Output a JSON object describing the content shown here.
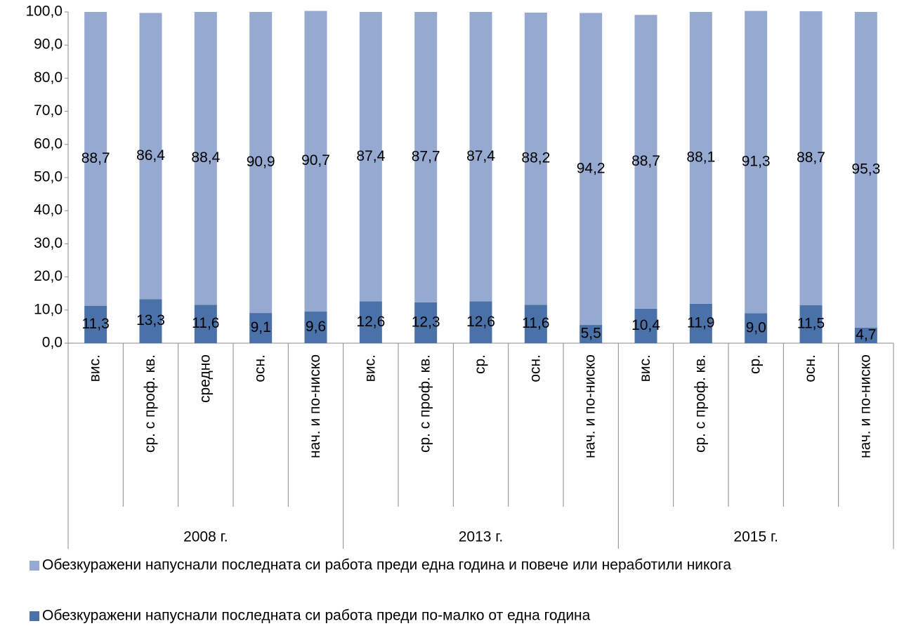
{
  "chart_data": {
    "type": "stacked_bar",
    "categories": [
      "вис.",
      "ср. с  проф. кв.",
      "средно",
      "осн.",
      "нач. и по-ниско",
      "вис.",
      "ср. с  проф. кв.",
      "ср.",
      "осн.",
      "нач. и по-ниско",
      "вис.",
      "ср. с  проф. кв.",
      "ср.",
      "осн.",
      "нач. и по-ниско"
    ],
    "groups": [
      "2008 г.",
      "2013 г.",
      "2015 г."
    ],
    "series": [
      {
        "name": "Обезкуражени напуснали последната  си работа преди по-малко от една година",
        "color": "#4a72a8",
        "values": [
          11.3,
          13.3,
          11.6,
          9.1,
          9.6,
          12.6,
          12.3,
          12.6,
          11.6,
          5.5,
          10.4,
          11.9,
          9.0,
          11.5,
          4.7
        ],
        "value_labels": [
          "11,3",
          "13,3",
          "11,6",
          "9,1",
          "9,6",
          "12,6",
          "12,3",
          "12,6",
          "11,6",
          "5,5",
          "10,4",
          "11,9",
          "9,0",
          "11,5",
          "4,7"
        ]
      },
      {
        "name": "Обезкуражени напуснали последната си работа преди една година и повече или неработили никога",
        "color": "#95a9d1",
        "values": [
          88.7,
          86.4,
          88.4,
          90.9,
          90.7,
          87.4,
          87.7,
          87.4,
          88.2,
          94.2,
          88.7,
          88.1,
          91.3,
          88.7,
          95.3
        ],
        "value_labels": [
          "88,7",
          "86,4",
          "88,4",
          "90,9",
          "90,7",
          "87,4",
          "87,7",
          "87,4",
          "88,2",
          "94,2",
          "88,7",
          "88,1",
          "91,3",
          "88,7",
          "95,3"
        ]
      }
    ],
    "ylim": [
      0,
      100
    ],
    "yticks": [
      {
        "value": 0,
        "label": "0,0"
      },
      {
        "value": 10,
        "label": "10,0"
      },
      {
        "value": 20,
        "label": "20,0"
      },
      {
        "value": 30,
        "label": "30,0"
      },
      {
        "value": 40,
        "label": "40,0"
      },
      {
        "value": 50,
        "label": "50,0"
      },
      {
        "value": 60,
        "label": "60,0"
      },
      {
        "value": 70,
        "label": "70,0"
      },
      {
        "value": 80,
        "label": "80,0"
      },
      {
        "value": 90,
        "label": "90,0"
      },
      {
        "value": 100,
        "label": "100,0"
      }
    ]
  }
}
